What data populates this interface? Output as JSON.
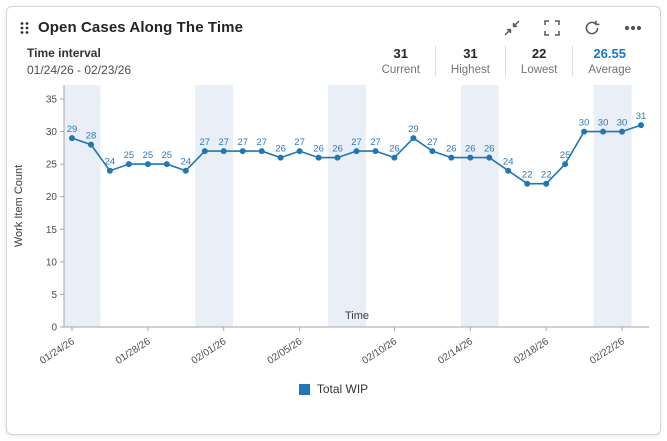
{
  "card": {
    "title": "Open Cases Along The Time",
    "toolbar": {
      "minimize": "minimize",
      "fullscreen": "fullscreen",
      "refresh": "refresh",
      "more": "more options"
    },
    "interval": {
      "label": "Time interval",
      "range": "01/24/26 - 02/23/26"
    },
    "stats": [
      {
        "value": "31",
        "label": "Current"
      },
      {
        "value": "31",
        "label": "Highest"
      },
      {
        "value": "22",
        "label": "Lowest"
      },
      {
        "value": "26.55",
        "label": "Average",
        "highlight": true,
        "color": "#1778c8"
      }
    ]
  },
  "chart_data": {
    "type": "line",
    "title": "Open Cases Along The Time",
    "x": [
      "01/24/26",
      "01/25/26",
      "01/26/26",
      "01/27/26",
      "01/28/26",
      "01/29/26",
      "01/30/26",
      "01/31/26",
      "02/01/26",
      "02/02/26",
      "02/03/26",
      "02/04/26",
      "02/05/26",
      "02/06/26",
      "02/07/26",
      "02/08/26",
      "02/09/26",
      "02/10/26",
      "02/11/26",
      "02/12/26",
      "02/13/26",
      "02/14/26",
      "02/15/26",
      "02/16/26",
      "02/17/26",
      "02/18/26",
      "02/19/26",
      "02/20/26",
      "02/21/26",
      "02/22/26",
      "02/23/26"
    ],
    "series": [
      {
        "name": "Total WIP",
        "values": [
          29,
          28,
          24,
          25,
          25,
          25,
          24,
          27,
          27,
          27,
          27,
          26,
          27,
          26,
          26,
          27,
          27,
          26,
          29,
          27,
          26,
          26,
          26,
          24,
          22,
          22,
          25,
          30,
          30,
          30,
          31
        ]
      }
    ],
    "tick_indices": [
      0,
      4,
      8,
      12,
      17,
      21,
      25,
      29
    ],
    "tick_labels": [
      "01/24/26",
      "01/28/26",
      "02/01/26",
      "02/05/26",
      "02/10/26",
      "02/14/26",
      "02/18/26",
      "02/22/26"
    ],
    "weekend_bands": [
      [
        0,
        1
      ],
      [
        7,
        8
      ],
      [
        14,
        15
      ],
      [
        21,
        22
      ],
      [
        28,
        29
      ]
    ],
    "xlabel": "Time",
    "ylabel": "Work Item Count",
    "ylim": [
      0,
      35
    ],
    "yticks": [
      0,
      5,
      10,
      15,
      20,
      25,
      30,
      35
    ],
    "grid": false,
    "legend_position": "bottom",
    "legend": [
      {
        "label": "Total WIP",
        "color": "#1f77b4"
      }
    ],
    "colors": {
      "line": "#1f77b4",
      "point": "#1f77b4",
      "band": "#eaeef7",
      "point_label": "#2b7ab8",
      "axis": "#a6a6a6"
    }
  }
}
